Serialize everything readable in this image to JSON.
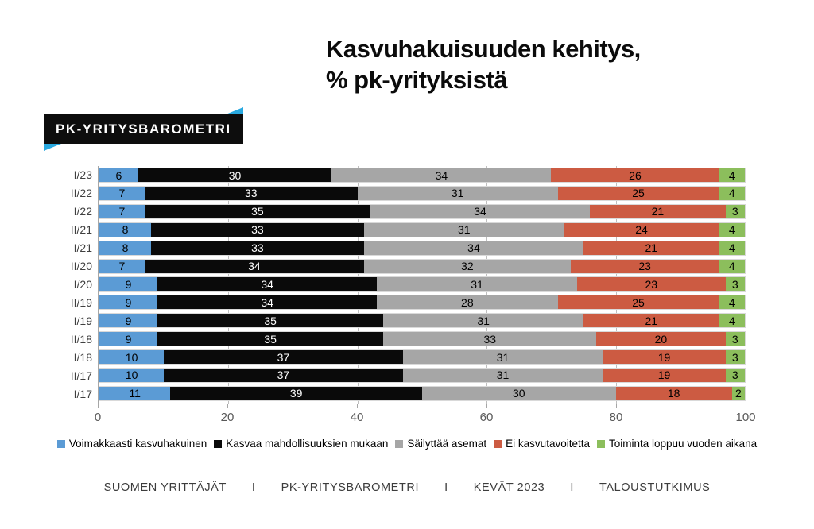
{
  "title": {
    "line1": "Kasvuhakuisuuden kehitys,",
    "line2": "% pk-yrityksistä"
  },
  "logo": {
    "text": "PK-YRITYSBAROMETRI",
    "accent_color": "#29A9E0",
    "background_color": "#0D0D0D"
  },
  "chart_data": {
    "type": "bar",
    "orientation": "horizontal",
    "stacked": true,
    "percent_of_total": true,
    "title": "Kasvuhakuisuuden kehitys, % pk-yrityksistä",
    "categories": [
      "I/23",
      "II/22",
      "I/22",
      "II/21",
      "I/21",
      "II/20",
      "I/20",
      "II/19",
      "I/19",
      "II/18",
      "I/18",
      "II/17",
      "I/17"
    ],
    "series": [
      {
        "name": "Voimakkaasti kasvuhakuinen",
        "color": "#5B9BD5",
        "label_color": "#000000",
        "values": [
          6,
          7,
          7,
          8,
          8,
          7,
          9,
          9,
          9,
          9,
          10,
          10,
          11
        ]
      },
      {
        "name": "Kasvaa mahdollisuuksien mukaan",
        "color": "#0A0A0A",
        "label_color": "#FFFFFF",
        "values": [
          30,
          33,
          35,
          33,
          33,
          34,
          34,
          34,
          35,
          35,
          37,
          37,
          39
        ]
      },
      {
        "name": "Säilyttää asemat",
        "color": "#A6A6A6",
        "label_color": "#000000",
        "values": [
          34,
          31,
          34,
          31,
          34,
          32,
          31,
          28,
          31,
          33,
          31,
          31,
          30
        ]
      },
      {
        "name": "Ei kasvutavoitetta",
        "color": "#CC5B42",
        "label_color": "#000000",
        "values": [
          26,
          25,
          21,
          24,
          21,
          23,
          23,
          25,
          21,
          20,
          19,
          19,
          18
        ]
      },
      {
        "name": "Toiminta loppuu vuoden aikana",
        "color": "#8CBE5C",
        "label_color": "#000000",
        "values": [
          4,
          4,
          3,
          4,
          4,
          4,
          3,
          4,
          4,
          3,
          3,
          3,
          2
        ]
      }
    ],
    "x_ticks": [
      0,
      20,
      40,
      60,
      80,
      100
    ],
    "xlim": [
      0,
      100
    ],
    "grid": true,
    "legend_position": "bottom"
  },
  "footer": {
    "items": [
      "SUOMEN YRITTÄJÄT",
      "PK-YRITYSBAROMETRI",
      "KEVÄT 2023",
      "TALOUSTUTKIMUS"
    ],
    "separator": "I"
  }
}
